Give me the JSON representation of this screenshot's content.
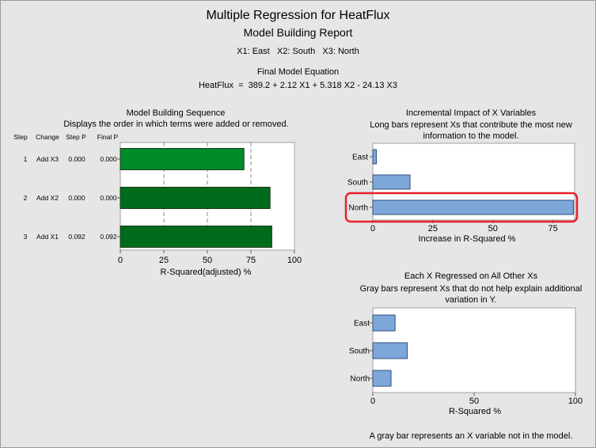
{
  "report": {
    "title": "Multiple Regression for HeatFlux",
    "subtitle": "Model Building Report",
    "variables": [
      "X1: East",
      "X2: South",
      "X3: North"
    ],
    "equation_heading": "Final Model Equation",
    "equation": "HeatFlux  =  389.2 + 2.12 X1 + 5.318 X2 - 24.13 X3",
    "footnote": "A gray bar represents an X variable not in the model."
  },
  "colors": {
    "background": "#e6e6e6",
    "green_light": "#008a2a",
    "green_dark": "#006b1a",
    "blue_bar": "#7da7d9",
    "highlight": "#e8212b"
  },
  "chart_data": [
    {
      "type": "bar",
      "orientation": "horizontal",
      "title": "Model Building Sequence",
      "subtitle": "Displays the order in which terms were added or removed.",
      "xlabel": "R-Squared(adjusted) %",
      "xlim": [
        0,
        100
      ],
      "xticks": [
        0,
        25,
        50,
        75,
        100
      ],
      "grid": "dashed vertical",
      "table_headers": [
        "Step",
        "Change",
        "Step P",
        "Final P"
      ],
      "rows": [
        {
          "step": "1",
          "change": "Add X3",
          "step_p": "0.000",
          "final_p": "0.000",
          "value": 71
        },
        {
          "step": "2",
          "change": "Add X2",
          "step_p": "0.000",
          "final_p": "0.000",
          "value": 86
        },
        {
          "step": "3",
          "change": "Add X1",
          "step_p": "0.092",
          "final_p": "0.092",
          "value": 87
        }
      ]
    },
    {
      "type": "bar",
      "orientation": "horizontal",
      "title": "Incremental Impact of X Variables",
      "subtitle": "Long bars represent Xs that contribute the most new information to the model.",
      "xlabel": "Increase in R-Squared %",
      "xlim": [
        0,
        84
      ],
      "xticks": [
        0,
        25,
        50,
        75
      ],
      "categories": [
        "East",
        "South",
        "North"
      ],
      "values": [
        1.5,
        15.5,
        83.5
      ],
      "highlighted": "North"
    },
    {
      "type": "bar",
      "orientation": "horizontal",
      "title": "Each X Regressed on All Other Xs",
      "subtitle": "Gray bars represent Xs that do not help explain additional variation in Y.",
      "xlabel": "R-Squared %",
      "xlim": [
        0,
        100
      ],
      "xticks": [
        0,
        50,
        100
      ],
      "categories": [
        "East",
        "South",
        "North"
      ],
      "values": [
        11,
        17,
        9
      ]
    }
  ]
}
